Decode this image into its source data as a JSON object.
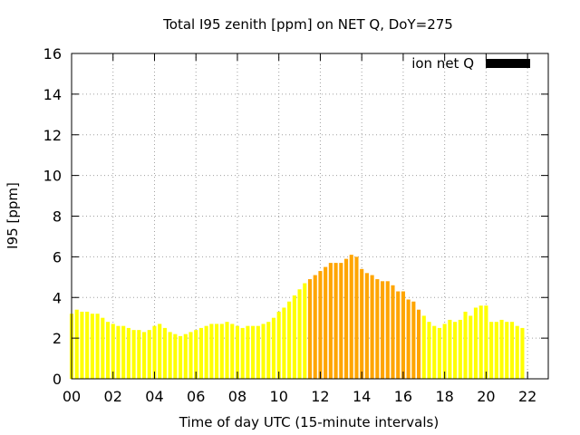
{
  "chart_data": {
    "type": "bar",
    "title": "Total I95 zenith [ppm] on NET Q, DoY=275",
    "xlabel": "Time of day UTC (15-minute intervals)",
    "ylabel": "I95 [ppm]",
    "xlim": [
      0,
      23
    ],
    "ylim": [
      0,
      16
    ],
    "x_ticks": [
      "00",
      "02",
      "04",
      "06",
      "08",
      "10",
      "12",
      "14",
      "16",
      "18",
      "20",
      "22"
    ],
    "y_ticks": [
      "0",
      "2",
      "4",
      "6",
      "8",
      "10",
      "12",
      "14",
      "16"
    ],
    "grid": true,
    "legend": {
      "label": "ion net Q",
      "color": "#000000",
      "placement": "top-right"
    },
    "colors": {
      "low": "#ffff00",
      "high": "#ffa500"
    },
    "highlight_range": [
      11.5,
      16.75
    ],
    "x_start": 0,
    "x_step": 0.25,
    "values": [
      3.2,
      3.4,
      3.3,
      3.3,
      3.2,
      3.2,
      3.0,
      2.8,
      2.7,
      2.6,
      2.6,
      2.5,
      2.4,
      2.4,
      2.3,
      2.4,
      2.6,
      2.7,
      2.5,
      2.3,
      2.2,
      2.1,
      2.2,
      2.3,
      2.4,
      2.5,
      2.6,
      2.7,
      2.7,
      2.7,
      2.8,
      2.7,
      2.6,
      2.5,
      2.6,
      2.6,
      2.6,
      2.7,
      2.8,
      3.0,
      3.3,
      3.5,
      3.8,
      4.1,
      4.4,
      4.7,
      4.9,
      5.1,
      5.3,
      5.5,
      5.7,
      5.7,
      5.7,
      5.9,
      6.1,
      6.0,
      5.4,
      5.2,
      5.1,
      4.9,
      4.8,
      4.8,
      4.6,
      4.3,
      4.3,
      3.9,
      3.8,
      3.4,
      3.1,
      2.8,
      2.6,
      2.5,
      2.7,
      2.9,
      2.8,
      2.9,
      3.3,
      3.1,
      3.5,
      3.6,
      3.6,
      2.8,
      2.8,
      2.9,
      2.8,
      2.8,
      2.6,
      2.5
    ]
  }
}
